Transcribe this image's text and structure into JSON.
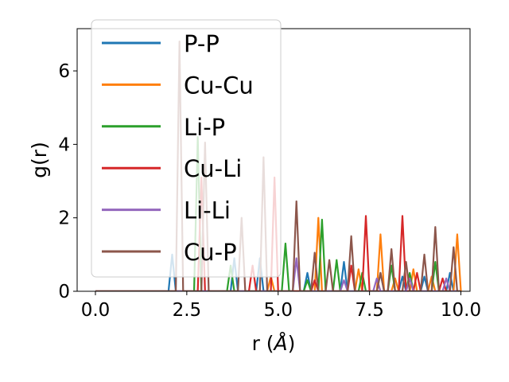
{
  "chart_data": {
    "type": "line",
    "xlabel": "r (Å)",
    "xlabel_parts": [
      "r (",
      "Å",
      ")"
    ],
    "ylabel": "g(r)",
    "xlim": [
      -0.5,
      10.25
    ],
    "ylim": [
      0,
      7.15
    ],
    "xticks": [
      0.0,
      2.5,
      5.0,
      7.5,
      10.0
    ],
    "xtick_labels": [
      "0.0",
      "2.5",
      "5.0",
      "7.5",
      "10.0"
    ],
    "yticks": [
      0,
      2,
      4,
      6
    ],
    "ytick_labels": [
      "0",
      "2",
      "4",
      "6"
    ],
    "grid": false,
    "legend": "upper-left",
    "series": [
      {
        "name": "P-P",
        "color": "#1f77b4",
        "x": [
          0,
          2.0,
          2.1,
          2.2,
          3.7,
          3.8,
          3.9,
          4.4,
          4.5,
          4.6,
          5.7,
          5.8,
          5.9,
          6.7,
          6.8,
          6.9,
          7.7,
          7.8,
          7.9,
          8.3,
          8.4,
          8.5,
          8.9,
          9.0,
          9.1,
          9.6,
          9.7,
          9.8,
          10.0
        ],
        "y": [
          0,
          0,
          1.0,
          0,
          0,
          0.9,
          0,
          0,
          0.9,
          0,
          0,
          0.5,
          0,
          0,
          0.8,
          0,
          0,
          0.5,
          0,
          0,
          0.4,
          0,
          0,
          0.4,
          0,
          0,
          0.5,
          0,
          0
        ]
      },
      {
        "name": "Cu-Cu",
        "color": "#ff7f0e",
        "x": [
          0,
          4.7,
          4.8,
          4.9,
          6.0,
          6.1,
          6.2,
          7.1,
          7.2,
          7.3,
          7.7,
          7.8,
          7.9,
          8.1,
          8.2,
          8.3,
          8.6,
          8.7,
          8.8,
          9.1,
          9.2,
          9.3,
          9.8,
          9.9,
          10.0
        ],
        "y": [
          0,
          0,
          0.4,
          0,
          0,
          2.0,
          0,
          0,
          0.6,
          0,
          0,
          1.55,
          0,
          0,
          0.35,
          0,
          0,
          0.6,
          0,
          0,
          0.4,
          0,
          0,
          1.55,
          0
        ]
      },
      {
        "name": "Li-P",
        "color": "#2ca02c",
        "x": [
          0,
          2.7,
          2.8,
          2.9,
          3.6,
          3.7,
          3.8,
          5.1,
          5.2,
          5.3,
          5.7,
          5.8,
          5.9,
          6.1,
          6.2,
          6.3,
          6.5,
          6.6,
          6.7,
          7.2,
          7.3,
          7.4,
          8.0,
          8.1,
          8.2,
          8.5,
          8.6,
          8.7,
          9.2,
          9.3,
          9.4,
          10.0
        ],
        "y": [
          0,
          0,
          4.2,
          0,
          0,
          0.7,
          0,
          0,
          1.3,
          0,
          0,
          0.3,
          0,
          0,
          1.95,
          0,
          0,
          0.85,
          0,
          0,
          0.5,
          0,
          0,
          0.7,
          0,
          0,
          0.5,
          0,
          0,
          0.8,
          0,
          0
        ]
      },
      {
        "name": "Cu-Li",
        "color": "#d62728",
        "x": [
          0,
          2.8,
          2.9,
          3.0,
          4.2,
          4.3,
          4.4,
          4.8,
          4.9,
          5.0,
          5.9,
          6.0,
          6.1,
          6.9,
          7.0,
          7.1,
          7.3,
          7.4,
          7.5,
          8.3,
          8.4,
          8.5,
          8.7,
          8.8,
          8.9,
          9.4,
          9.5,
          9.6,
          10.0
        ],
        "y": [
          0,
          0,
          3.1,
          0,
          0,
          0.7,
          0,
          0,
          3.1,
          0,
          0,
          0.3,
          0,
          0,
          0.7,
          0,
          0,
          2.05,
          0,
          0,
          2.05,
          0,
          0,
          0.5,
          0,
          0,
          0.35,
          0,
          0
        ]
      },
      {
        "name": "Li-Li",
        "color": "#9467bd",
        "x": [
          0,
          5.4,
          5.5,
          5.6,
          6.7,
          6.8,
          6.9,
          7.6,
          7.7,
          7.8,
          8.5,
          8.6,
          8.7,
          9.5,
          9.6,
          9.7,
          10.0
        ],
        "y": [
          0,
          0,
          0.9,
          0,
          0,
          0.3,
          0,
          0,
          0.35,
          0,
          0,
          0.35,
          0,
          0,
          0.35,
          0,
          0
        ]
      },
      {
        "name": "Cu-P",
        "color": "#8c564b",
        "x": [
          0,
          2.2,
          2.3,
          2.4,
          2.9,
          3.0,
          3.1,
          3.9,
          4.0,
          4.1,
          4.5,
          4.6,
          4.7,
          5.4,
          5.5,
          5.6,
          5.9,
          6.0,
          6.1,
          6.3,
          6.4,
          6.5,
          6.9,
          7.0,
          7.1,
          7.7,
          7.8,
          7.9,
          8.0,
          8.1,
          8.2,
          8.4,
          8.5,
          8.6,
          8.9,
          9.0,
          9.1,
          9.2,
          9.3,
          9.4,
          9.7,
          9.8,
          9.9,
          10.0
        ],
        "y": [
          0,
          0,
          6.8,
          0,
          0,
          4.05,
          0,
          0,
          2.0,
          0,
          0,
          3.65,
          0,
          0,
          2.45,
          0,
          0,
          1.05,
          0,
          0,
          0.85,
          0,
          0,
          1.5,
          0,
          0,
          0.5,
          0,
          0,
          1.15,
          0,
          0,
          0.8,
          0,
          0,
          1.0,
          0,
          0,
          1.75,
          0,
          0,
          1.2,
          0,
          0
        ]
      }
    ]
  }
}
